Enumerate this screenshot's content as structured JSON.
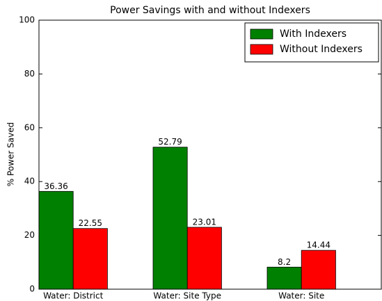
{
  "chart_data": {
    "type": "bar",
    "title": "Power Savings with and without Indexers",
    "y_label": "% Power Saved",
    "categories": [
      "Water: District",
      "Water: Site Type",
      "Water: Site"
    ],
    "series": [
      {
        "name": "With Indexers",
        "color": "#008000",
        "values": [
          36.36,
          52.79,
          8.2
        ]
      },
      {
        "name": "Without Indexers",
        "color": "#ff0000",
        "values": [
          22.55,
          23.01,
          14.44
        ]
      }
    ],
    "ylim": [
      0,
      100
    ],
    "yticks": [
      0,
      20,
      40,
      60,
      80,
      100
    ],
    "grid": false,
    "legend": "upper right"
  }
}
